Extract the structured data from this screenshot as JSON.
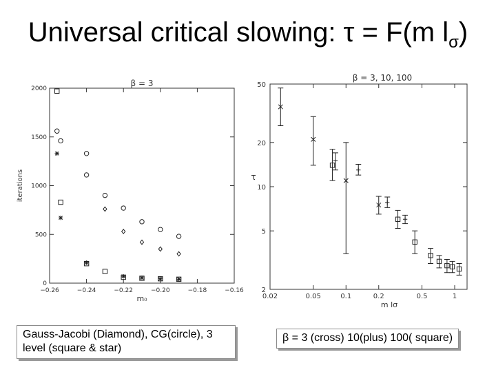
{
  "title": {
    "text": "Universal critical slowing: τ = F(m l",
    "sub": "σ",
    "close": ")"
  },
  "captions": {
    "left": "Gauss-Jacobi (Diamond), CG(circle), 3 level  (square & star)",
    "right": "β = 3 (cross) 10(plus) 100( square)"
  },
  "chart_data": [
    {
      "type": "scatter",
      "title": "β = 3",
      "xlabel": "m₀",
      "ylabel": "iterations",
      "xlim": [
        -0.26,
        -0.16
      ],
      "ylim": [
        0,
        2000
      ],
      "x_ticks": [
        "−0.26",
        "−0.24",
        "−0.22",
        "−0.20",
        "−0.18",
        "−0.16"
      ],
      "y_ticks": [
        "0",
        "500",
        "1000",
        "1500",
        "2000"
      ],
      "series": [
        {
          "marker": "circle",
          "points": [
            [
              -0.256,
              1560
            ],
            [
              -0.254,
              1460
            ],
            [
              -0.24,
              1330
            ],
            [
              -0.24,
              1110
            ],
            [
              -0.23,
              900
            ],
            [
              -0.22,
              770
            ],
            [
              -0.21,
              630
            ],
            [
              -0.2,
              550
            ],
            [
              -0.19,
              480
            ]
          ]
        },
        {
          "marker": "diamond",
          "points": [
            [
              -0.23,
              760
            ],
            [
              -0.22,
              530
            ],
            [
              -0.21,
              420
            ],
            [
              -0.2,
              350
            ],
            [
              -0.19,
              300
            ]
          ]
        },
        {
          "marker": "square",
          "points": [
            [
              -0.256,
              1970
            ],
            [
              -0.254,
              830
            ],
            [
              -0.24,
              200
            ],
            [
              -0.23,
              120
            ],
            [
              -0.22,
              60
            ],
            [
              -0.21,
              50
            ],
            [
              -0.2,
              45
            ],
            [
              -0.19,
              40
            ]
          ]
        },
        {
          "marker": "star",
          "points": [
            [
              -0.256,
              1330
            ],
            [
              -0.254,
              670
            ],
            [
              -0.24,
              210
            ],
            [
              -0.22,
              70
            ],
            [
              -0.21,
              55
            ],
            [
              -0.2,
              45
            ],
            [
              -0.19,
              40
            ]
          ]
        }
      ]
    },
    {
      "type": "scatter",
      "title": "β = 3,  10,  100",
      "xlabel": "m lσ",
      "ylabel": "τ",
      "xscale": "log",
      "yscale": "log",
      "xlim": [
        0.02,
        1.3
      ],
      "ylim": [
        2,
        50
      ],
      "x_ticks": [
        {
          "v": 0.02,
          "t": "0.02"
        },
        {
          "v": 0.05,
          "t": "0.05"
        },
        {
          "v": 0.1,
          "t": "0.1"
        },
        {
          "v": 0.2,
          "t": "0.2"
        },
        {
          "v": 0.5,
          "t": "0.5"
        },
        {
          "v": 1,
          "t": "1"
        }
      ],
      "y_ticks": [
        {
          "v": 2,
          "t": "2"
        },
        {
          "v": 5,
          "t": "5"
        },
        {
          "v": 10,
          "t": "10"
        },
        {
          "v": 20,
          "t": "20"
        },
        {
          "v": 50,
          "t": "50"
        }
      ],
      "series": [
        {
          "marker": "cross",
          "points": [
            [
              0.025,
              35,
              26,
              47
            ],
            [
              0.05,
              21,
              14,
              30
            ],
            [
              0.1,
              11,
              3.5,
              20
            ],
            [
              0.2,
              7.5,
              6.5,
              8.6
            ]
          ]
        },
        {
          "marker": "plus",
          "points": [
            [
              0.08,
              15,
              13,
              17
            ],
            [
              0.13,
              13,
              12,
              14.2
            ],
            [
              0.24,
              7.8,
              7.2,
              8.5
            ],
            [
              0.35,
              6.0,
              5.6,
              6.4
            ]
          ]
        },
        {
          "marker": "square",
          "points": [
            [
              0.075,
              14,
              11,
              18
            ],
            [
              0.3,
              6,
              5.2,
              6.9
            ],
            [
              0.43,
              4.2,
              3.5,
              5.0
            ],
            [
              0.6,
              3.4,
              3.0,
              3.8
            ],
            [
              0.72,
              3.1,
              2.8,
              3.4
            ],
            [
              0.85,
              2.9,
              2.6,
              3.2
            ],
            [
              0.95,
              2.85,
              2.6,
              3.1
            ],
            [
              1.1,
              2.75,
              2.5,
              3.0
            ]
          ]
        }
      ]
    }
  ]
}
